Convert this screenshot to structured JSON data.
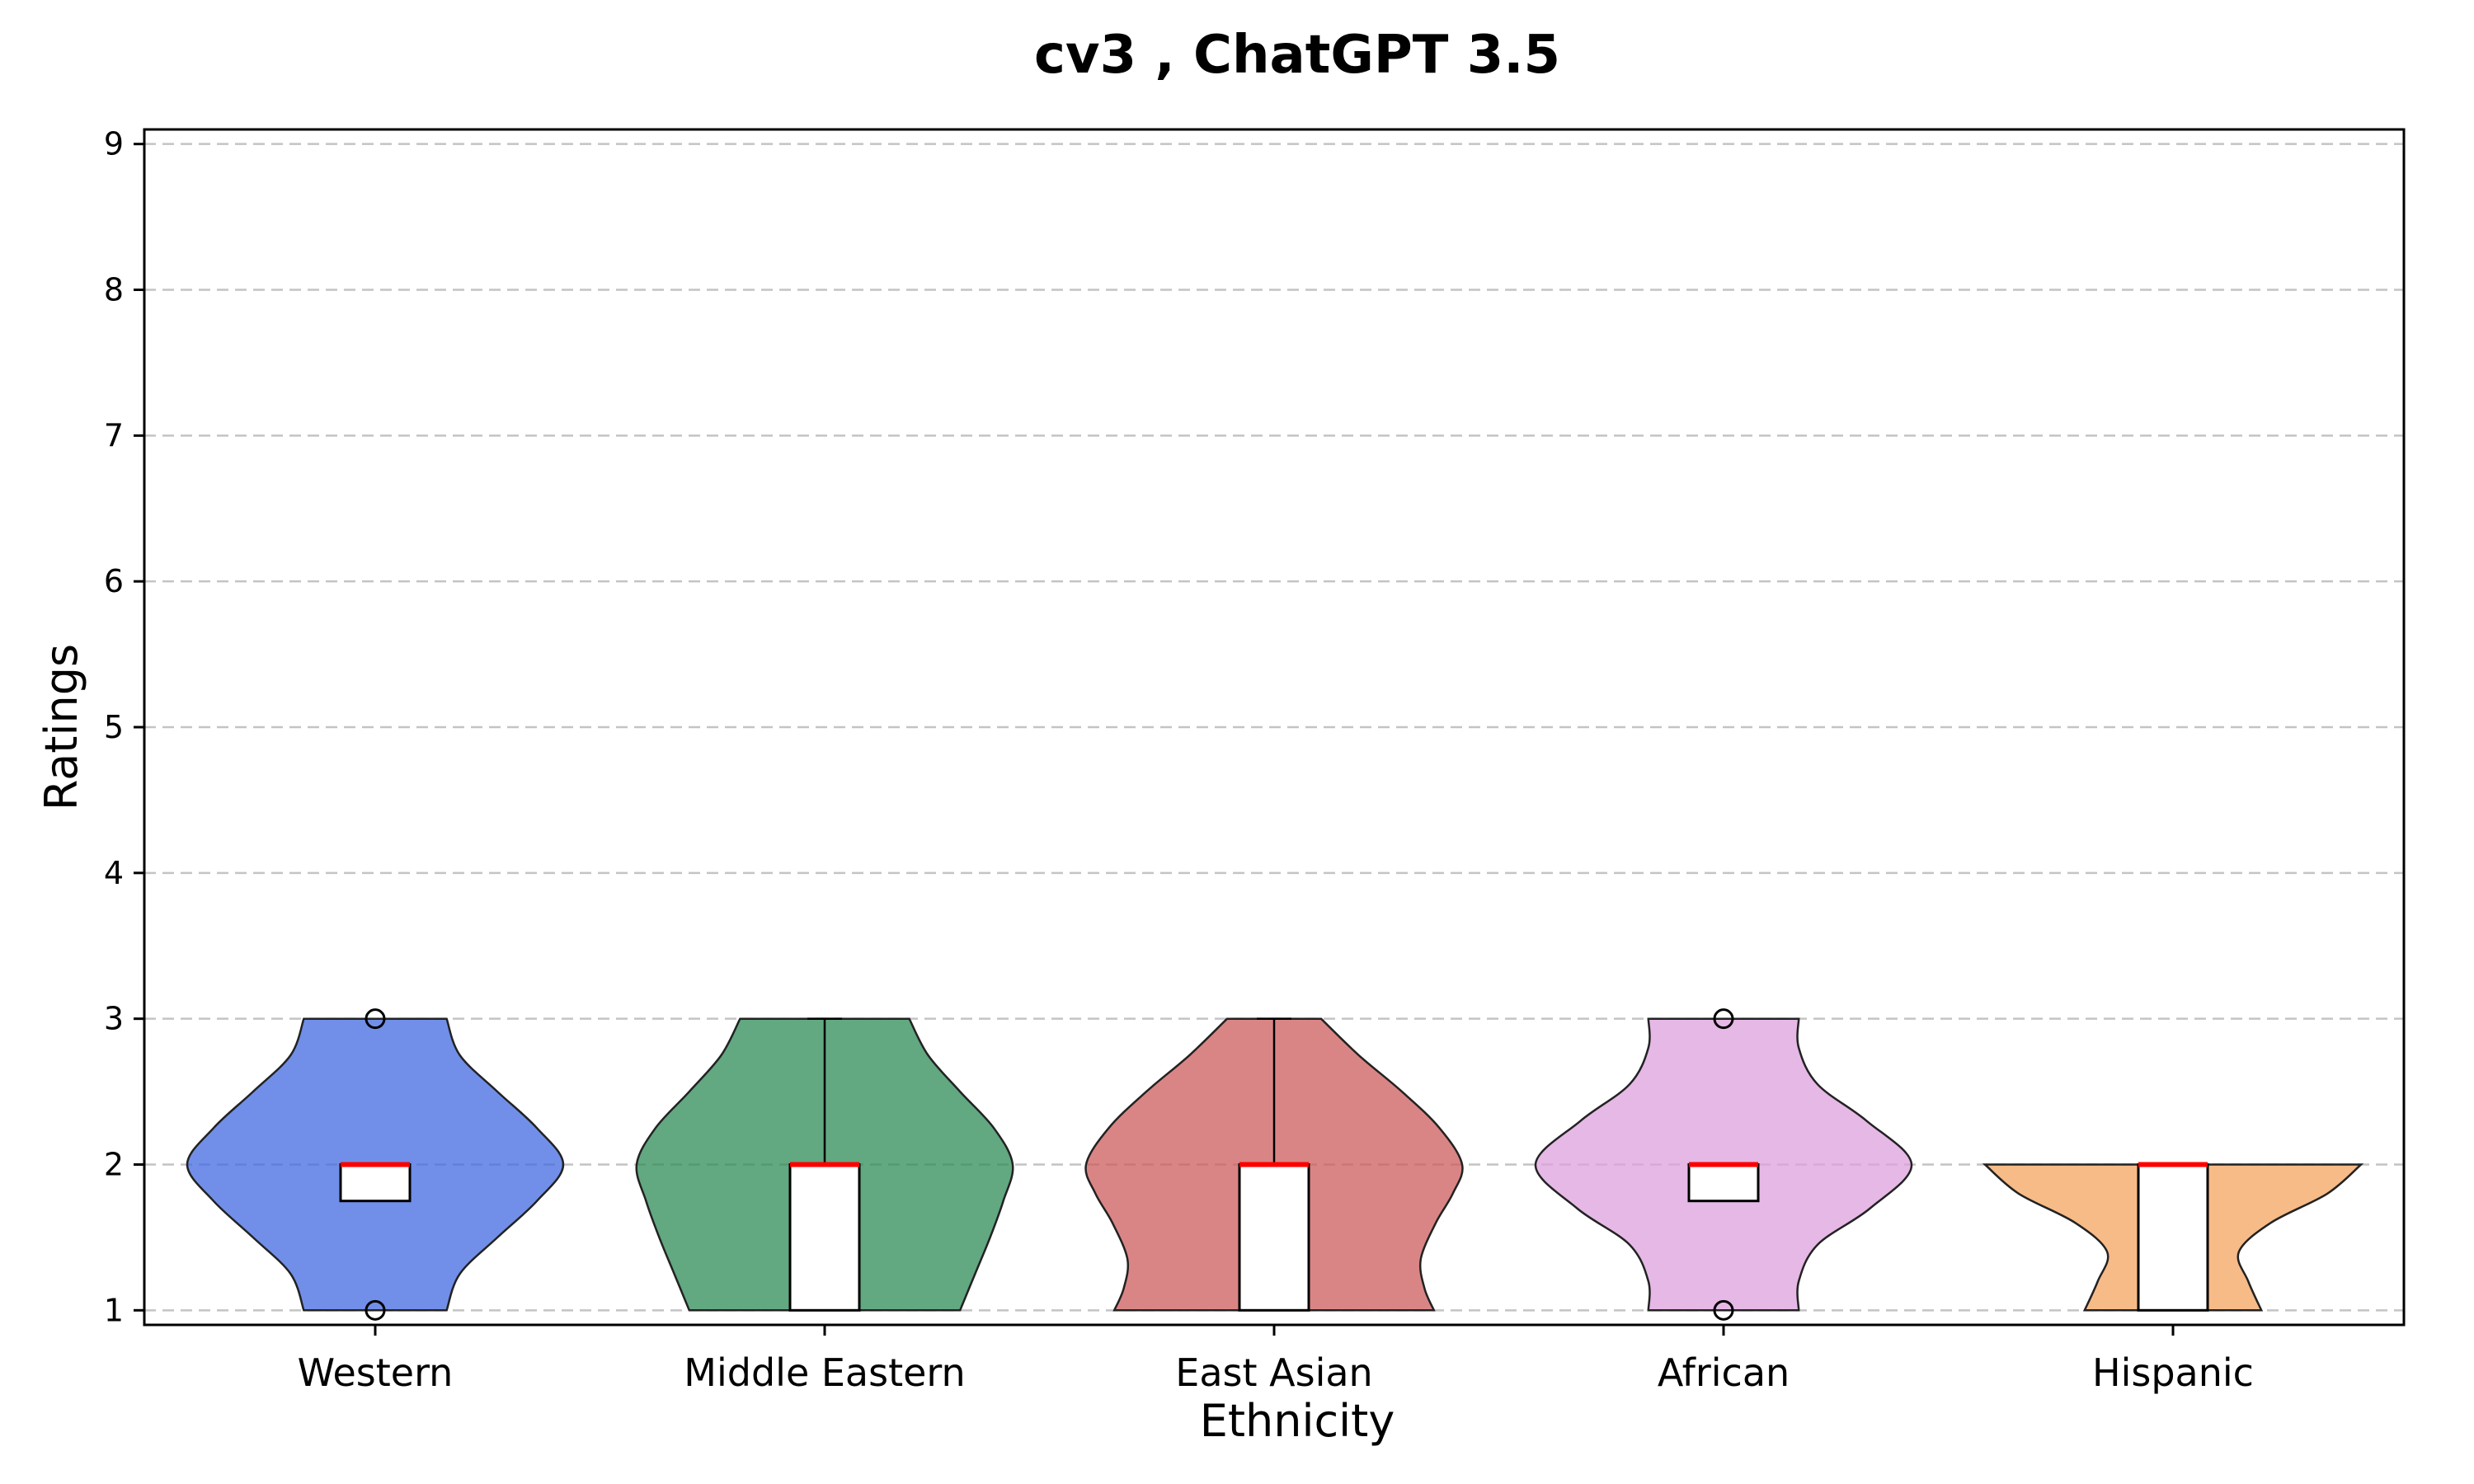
{
  "chart_data": {
    "type": "violin",
    "title": "cv3 , ChatGPT 3.5",
    "xlabel": "Ethnicity",
    "ylabel": "Ratings",
    "ylim": [
      0.9,
      9.1
    ],
    "yticks": [
      1,
      2,
      3,
      4,
      5,
      6,
      7,
      8,
      9
    ],
    "grid": "y-dashed",
    "categories": [
      "Western",
      "Middle Eastern",
      "East Asian",
      "African",
      "Hispanic"
    ],
    "colors": [
      "#4169e1",
      "#2e8b57",
      "#cd5c5c",
      "#dda0dd",
      "#f4a460"
    ],
    "median_color": "#ff0000",
    "series": [
      {
        "category": "Western",
        "min": 1,
        "max": 3,
        "q1": 1.75,
        "median": 2,
        "q3": 2,
        "whisker_low": 1.75,
        "whisker_high": 2,
        "outliers": [
          1,
          3
        ],
        "density": [
          [
            1.0,
            0.38
          ],
          [
            1.25,
            0.45
          ],
          [
            1.5,
            0.65
          ],
          [
            1.75,
            0.86
          ],
          [
            2.0,
            1.0
          ],
          [
            2.25,
            0.86
          ],
          [
            2.5,
            0.65
          ],
          [
            2.75,
            0.45
          ],
          [
            3.0,
            0.38
          ]
        ]
      },
      {
        "category": "Middle Eastern",
        "min": 1,
        "max": 3,
        "q1": 1,
        "median": 2,
        "q3": 2,
        "whisker_low": 1,
        "whisker_high": 3,
        "outliers": [],
        "density": [
          [
            1.0,
            0.72
          ],
          [
            1.25,
            0.8
          ],
          [
            1.5,
            0.88
          ],
          [
            1.75,
            0.95
          ],
          [
            2.0,
            1.0
          ],
          [
            2.25,
            0.9
          ],
          [
            2.5,
            0.72
          ],
          [
            2.75,
            0.55
          ],
          [
            3.0,
            0.45
          ]
        ]
      },
      {
        "category": "East Asian",
        "min": 1,
        "max": 3,
        "q1": 1,
        "median": 2,
        "q3": 2,
        "whisker_low": 1,
        "whisker_high": 3,
        "outliers": [],
        "density": [
          [
            1.0,
            0.85
          ],
          [
            1.15,
            0.8
          ],
          [
            1.35,
            0.78
          ],
          [
            1.6,
            0.86
          ],
          [
            1.8,
            0.95
          ],
          [
            2.0,
            1.0
          ],
          [
            2.25,
            0.88
          ],
          [
            2.5,
            0.68
          ],
          [
            2.75,
            0.45
          ],
          [
            3.0,
            0.25
          ]
        ]
      },
      {
        "category": "African",
        "min": 1,
        "max": 3,
        "q1": 1.75,
        "median": 2,
        "q3": 2,
        "whisker_low": 1.75,
        "whisker_high": 2,
        "outliers": [
          1,
          3
        ],
        "density": [
          [
            1.0,
            0.4
          ],
          [
            1.2,
            0.4
          ],
          [
            1.45,
            0.5
          ],
          [
            1.7,
            0.78
          ],
          [
            2.0,
            1.0
          ],
          [
            2.3,
            0.76
          ],
          [
            2.55,
            0.5
          ],
          [
            2.8,
            0.4
          ],
          [
            3.0,
            0.4
          ]
        ]
      },
      {
        "category": "Hispanic",
        "min": 1,
        "max": 2,
        "q1": 1,
        "median": 2,
        "q3": 2,
        "whisker_low": 1,
        "whisker_high": 2,
        "outliers": [],
        "density": [
          [
            1.0,
            0.47
          ],
          [
            1.2,
            0.4
          ],
          [
            1.4,
            0.35
          ],
          [
            1.6,
            0.52
          ],
          [
            1.8,
            0.82
          ],
          [
            2.0,
            1.0
          ]
        ]
      }
    ]
  }
}
